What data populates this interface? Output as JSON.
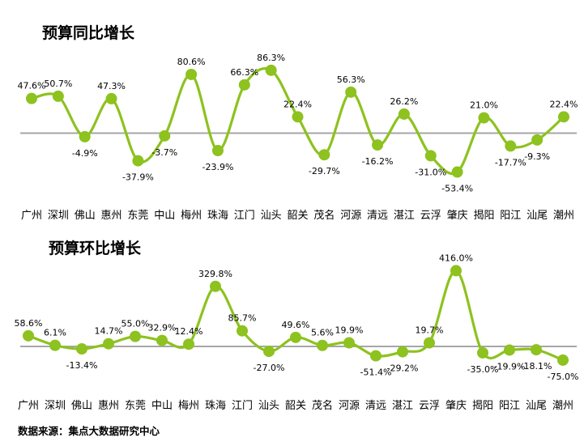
{
  "chart_data": [
    {
      "type": "line",
      "title": "预算同比增长",
      "categories": [
        "广州",
        "深圳",
        "佛山",
        "惠州",
        "东莞",
        "中山",
        "梅州",
        "珠海",
        "江门",
        "汕头",
        "韶关",
        "茂名",
        "河源",
        "清远",
        "湛江",
        "云浮",
        "肇庆",
        "揭阳",
        "阳江",
        "汕尾",
        "潮州"
      ],
      "series": [
        {
          "values": [
            47.6,
            50.7,
            -4.9,
            47.3,
            -37.9,
            -3.7,
            80.6,
            -23.9,
            66.3,
            86.3,
            22.4,
            -29.7,
            56.3,
            -16.2,
            26.2,
            -31.0,
            -53.4,
            21.0,
            -17.7,
            -9.3,
            22.4
          ],
          "labels": [
            "47.6%",
            "50.7%",
            "-4.9%",
            "47.3%",
            "-37.9%",
            "-3.7%",
            "80.6%",
            "-23.9%",
            "66.3%",
            "86.3%",
            "22.4%",
            "-29.7%",
            "56.3%",
            "-16.2%",
            "26.2%",
            "-31.0%",
            "-53.4%",
            "21.0%",
            "-17.7%",
            "-9.3%",
            "22.4%"
          ]
        }
      ],
      "line_color": "#8dc21f",
      "baseline_color": "#a6a6a6",
      "grid": false,
      "legend": false
    },
    {
      "type": "line",
      "title": "预算环比增长",
      "categories": [
        "广州",
        "深圳",
        "佛山",
        "惠州",
        "东莞",
        "中山",
        "梅州",
        "珠海",
        "江门",
        "汕头",
        "韶关",
        "茂名",
        "河源",
        "清远",
        "湛江",
        "云浮",
        "肇庆",
        "揭阳",
        "阳江",
        "汕尾",
        "潮州"
      ],
      "series": [
        {
          "values": [
            58.6,
            6.1,
            -13.4,
            14.7,
            55.0,
            32.9,
            12.4,
            329.8,
            85.7,
            -27.0,
            49.6,
            5.6,
            19.9,
            -51.4,
            -29.2,
            19.7,
            416.0,
            -35.0,
            -19.9,
            -18.1,
            -75.0
          ],
          "labels": [
            "58.6%",
            "6.1%",
            "-13.4%",
            "14.7%",
            "55.0%",
            "32.9%",
            "12.4%",
            "329.8%",
            "85.7%",
            "-27.0%",
            "49.6%",
            "5.6%",
            "19.9%",
            "-51.4%",
            "-29.2%",
            "19.7%",
            "416.0%",
            "-35.0%",
            "-19.9%",
            "-18.1%",
            "-75.0%"
          ]
        }
      ],
      "line_color": "#8dc21f",
      "baseline_color": "#a6a6a6",
      "grid": false,
      "legend": false
    }
  ],
  "footer": {
    "source": "数据来源：集点大数据研究中心"
  }
}
